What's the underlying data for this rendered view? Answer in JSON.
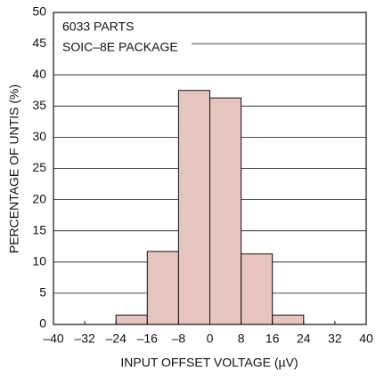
{
  "chart_data": {
    "type": "histogram",
    "annotations": [
      "6033 PARTS",
      "SOIC–8E PACKAGE"
    ],
    "xlabel": "INPUT OFFSET VOLTAGE (µV)",
    "ylabel": "PERCENTAGE OF UNTIS (%)",
    "bins": [
      -24,
      -16,
      -8,
      0,
      8,
      16,
      24
    ],
    "values": [
      1.5,
      11.7,
      37.5,
      36.3,
      11.3,
      1.5
    ],
    "color": "#e6c4bf",
    "xlim": [
      -40,
      40
    ],
    "xticks": [
      {
        "value": -40,
        "label": "–40"
      },
      {
        "value": -32,
        "label": "–32"
      },
      {
        "value": -24,
        "label": "–24"
      },
      {
        "value": -16,
        "label": "–16"
      },
      {
        "value": -8,
        "label": "–8"
      },
      0,
      8,
      16,
      24,
      32,
      40
    ],
    "ylim": [
      0,
      50
    ],
    "yticks": [
      0,
      5,
      10,
      15,
      20,
      25,
      30,
      35,
      40,
      45,
      50
    ],
    "grid": true
  }
}
